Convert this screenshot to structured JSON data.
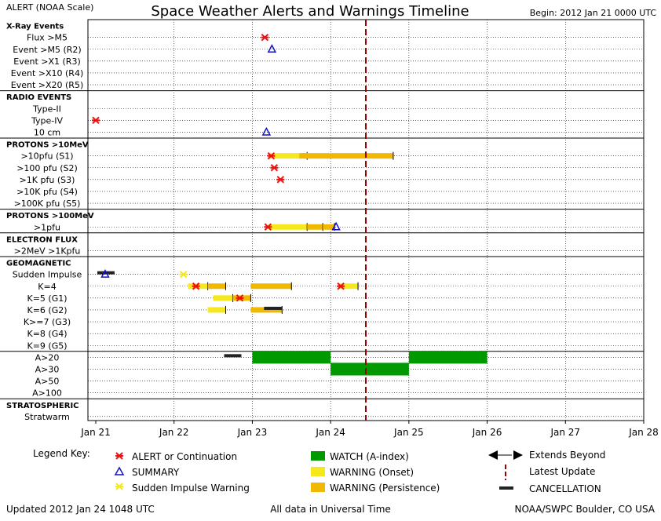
{
  "header": {
    "left": "ALERT (NOAA Scale)",
    "title": "Space Weather Alerts and Warnings Timeline",
    "right": "Begin: 2012 Jan 21 0000 UTC"
  },
  "footer": {
    "updated": "Updated 2012 Jan 24 1048 UTC",
    "center": "All data in Universal Time",
    "right": "NOAA/SWPC Boulder, CO USA"
  },
  "legend": {
    "title": "Legend Key:",
    "items": [
      {
        "key": "alert",
        "label": "ALERT or Continuation"
      },
      {
        "key": "summary",
        "label": "SUMMARY"
      },
      {
        "key": "siw",
        "label": "Sudden Impulse Warning"
      },
      {
        "key": "watch",
        "label": "WATCH (A-index)"
      },
      {
        "key": "onset",
        "label": "WARNING (Onset)"
      },
      {
        "key": "persist",
        "label": "WARNING (Persistence)"
      },
      {
        "key": "extends",
        "label": "Extends Beyond"
      },
      {
        "key": "update",
        "label": "Latest Update"
      },
      {
        "key": "cancel",
        "label": "CANCELLATION"
      }
    ]
  },
  "chart_data": {
    "type": "timeline",
    "x_range": [
      "2012-01-21 00:00",
      "2012-01-28 00:00"
    ],
    "x_unit": "days since 2012 Jan 21 0000 UTC",
    "x_ticks": [
      "Jan 21",
      "Jan 22",
      "Jan 23",
      "Jan 24",
      "Jan 25",
      "Jan 26",
      "Jan 27",
      "Jan 28"
    ],
    "latest_update": 3.45,
    "colors": {
      "alert": "#ee1111",
      "summary": "#1111cc",
      "watch": "#009900",
      "onset": "#f5e81c",
      "persist": "#f0b800",
      "siw": "#f5e81c",
      "cancel": "#222222",
      "update": "#990000"
    },
    "sections": [
      {
        "title": "X-Ray Events",
        "rows": [
          "Flux >M5",
          "Event >M5 (R2)",
          "Event >X1 (R3)",
          "Event >X10 (R4)",
          "Event >X20 (R5)"
        ]
      },
      {
        "title": "RADIO EVENTS",
        "rows": [
          "Type-II",
          "Type-IV",
          "10 cm"
        ]
      },
      {
        "title": "PROTONS >10MeV",
        "rows": [
          ">10pfu (S1)",
          ">100 pfu (S2)",
          ">1K pfu (S3)",
          ">10K pfu (S4)",
          ">100K pfu (S5)"
        ]
      },
      {
        "title": "PROTONS >100MeV",
        "rows": [
          ">1pfu"
        ]
      },
      {
        "title": "ELECTRON FLUX",
        "rows": [
          ">2MeV >1Kpfu"
        ]
      },
      {
        "title": "GEOMAGNETIC",
        "rows": [
          "Sudden Impulse",
          "K=4",
          "K=5 (G1)",
          "K=6 (G2)",
          "K>=7 (G3)",
          "K=8 (G4)",
          "K=9 (G5)"
        ]
      },
      {
        "title": "",
        "rows": [
          "A>20",
          "A>30",
          "A>50",
          "A>100"
        ]
      },
      {
        "title": "STRATOSPHERIC",
        "rows": [
          "Stratwarm"
        ]
      }
    ],
    "bars": [
      {
        "row": ">10pfu (S1)",
        "start": 2.2,
        "end": 2.7,
        "type": "onset"
      },
      {
        "row": ">10pfu (S1)",
        "start": 2.6,
        "end": 3.8,
        "type": "persist"
      },
      {
        "row": ">1pfu",
        "start": 2.2,
        "end": 2.7,
        "type": "onset"
      },
      {
        "row": ">1pfu",
        "start": 2.7,
        "end": 2.9,
        "type": "persist"
      },
      {
        "row": ">1pfu",
        "start": 2.9,
        "end": 3.05,
        "type": "persist"
      },
      {
        "row": "K=4",
        "start": 1.18,
        "end": 1.43,
        "type": "onset"
      },
      {
        "row": "K=4",
        "start": 1.43,
        "end": 1.66,
        "type": "persist"
      },
      {
        "row": "K=4",
        "start": 1.98,
        "end": 2.5,
        "type": "persist"
      },
      {
        "row": "K=4",
        "start": 3.1,
        "end": 3.35,
        "type": "onset"
      },
      {
        "row": "K=5 (G1)",
        "start": 1.5,
        "end": 1.75,
        "type": "onset"
      },
      {
        "row": "K=5 (G1)",
        "start": 1.75,
        "end": 1.98,
        "type": "persist"
      },
      {
        "row": "K=6 (G2)",
        "start": 1.43,
        "end": 1.66,
        "type": "onset"
      },
      {
        "row": "K=6 (G2)",
        "start": 1.98,
        "end": 2.38,
        "type": "persist"
      },
      {
        "row": "A>20",
        "start": 2.0,
        "end": 3.0,
        "type": "watch"
      },
      {
        "row": "A>20",
        "start": 4.0,
        "end": 5.0,
        "type": "watch"
      },
      {
        "row": "A>30",
        "start": 3.0,
        "end": 4.0,
        "type": "watch"
      }
    ],
    "cancellations": [
      {
        "row": "Sudden Impulse",
        "start": 0.02,
        "end": 0.24
      },
      {
        "row": "K=6 (G2)",
        "start": 2.15,
        "end": 2.38
      },
      {
        "row": "A>20",
        "start": 1.64,
        "end": 1.86
      }
    ],
    "alerts": [
      {
        "row": "Flux >M5",
        "x": 2.16
      },
      {
        "row": "Type-IV",
        "x": 0.0
      },
      {
        "row": ">10pfu (S1)",
        "x": 2.24
      },
      {
        "row": ">100 pfu (S2)",
        "x": 2.28
      },
      {
        "row": ">1K pfu (S3)",
        "x": 2.36
      },
      {
        "row": ">1pfu",
        "x": 2.2
      },
      {
        "row": "K=4",
        "x": 1.28
      },
      {
        "row": "K=4",
        "x": 3.13
      },
      {
        "row": "K=5 (G1)",
        "x": 1.84
      }
    ],
    "summaries": [
      {
        "row": "Event >M5 (R2)",
        "x": 2.25
      },
      {
        "row": "10 cm",
        "x": 2.18
      },
      {
        "row": ">1pfu",
        "x": 3.07
      },
      {
        "row": "Sudden Impulse",
        "x": 0.12
      }
    ],
    "siw": [
      {
        "row": "Sudden Impulse",
        "x": 1.12
      }
    ]
  }
}
